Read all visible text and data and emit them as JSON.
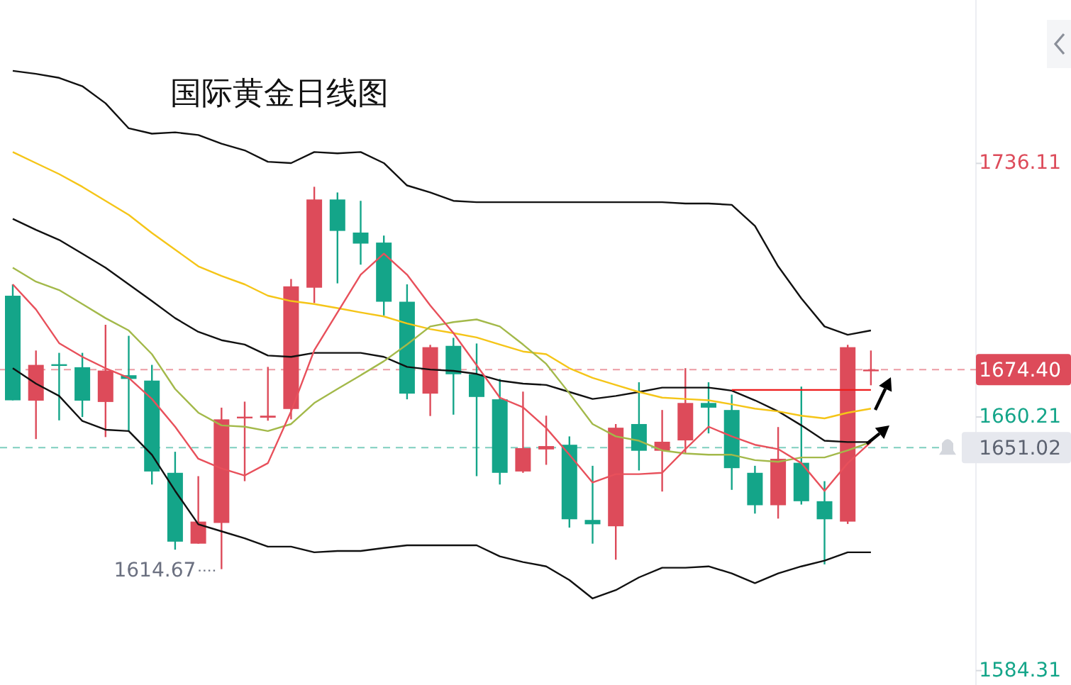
{
  "chart_data": {
    "type": "candlestick",
    "title": "国际黄金日线图",
    "categories": [
      null,
      null,
      null,
      null,
      null,
      null,
      null,
      null,
      null,
      null,
      null,
      null,
      null,
      null,
      null,
      null,
      null,
      null,
      null,
      null,
      null,
      null,
      null,
      null,
      null,
      null,
      null,
      null,
      null,
      null,
      null,
      null,
      null,
      null,
      null,
      null,
      null,
      null
    ],
    "ohlc": [
      [
        1696.5,
        1699.9,
        1665.2,
        1665.2
      ],
      [
        1665.1,
        1680.1,
        1653.6,
        1675.8
      ],
      [
        1676.0,
        1679.4,
        1659.2,
        1675.6
      ],
      [
        1675.1,
        1679.4,
        1660.2,
        1665.1
      ],
      [
        1664.7,
        1687.8,
        1654.2,
        1674.1
      ],
      [
        1672.7,
        1684.5,
        1656.0,
        1671.6
      ],
      [
        1671.1,
        1675.8,
        1640.0,
        1643.9
      ],
      [
        1643.5,
        1649.8,
        1620.5,
        1622.9
      ],
      [
        1622.3,
        1642.5,
        1622.3,
        1628.9
      ],
      [
        1628.5,
        1663.0,
        1614.67,
        1659.5
      ],
      [
        1660.0,
        1664.8,
        1641.0,
        1660.3
      ],
      [
        1660.0,
        1675.2,
        1659.1,
        1660.6
      ],
      [
        1662.6,
        1701.5,
        1659.5,
        1699.3
      ],
      [
        1698.9,
        1729.1,
        1694.3,
        1725.3
      ],
      [
        1725.3,
        1727.4,
        1700.2,
        1715.9
      ],
      [
        1715.4,
        1724.9,
        1705.8,
        1712.1
      ],
      [
        1712.4,
        1714.5,
        1690.6,
        1694.7
      ],
      [
        1694.7,
        1699.9,
        1665.5,
        1667.2
      ],
      [
        1667.2,
        1681.8,
        1660.5,
        1681.1
      ],
      [
        1681.5,
        1683.9,
        1660.9,
        1673.0
      ],
      [
        1673.0,
        1682.2,
        1642.5,
        1666.2
      ],
      [
        1665.5,
        1671.6,
        1640.0,
        1643.5
      ],
      [
        1643.9,
        1667.8,
        1643.5,
        1650.9
      ],
      [
        1650.5,
        1660.6,
        1645.9,
        1651.5
      ],
      [
        1651.9,
        1654.4,
        1627.1,
        1629.6
      ],
      [
        1629.4,
        1645.6,
        1622.3,
        1628.1
      ],
      [
        1627.5,
        1658.1,
        1617.5,
        1657.0
      ],
      [
        1658.1,
        1670.6,
        1644.2,
        1650.1
      ],
      [
        1650.1,
        1662.3,
        1637.9,
        1652.8
      ],
      [
        1653.2,
        1674.8,
        1649.3,
        1664.4
      ],
      [
        1664.4,
        1670.6,
        1655.3,
        1663.0
      ],
      [
        1662.3,
        1666.9,
        1638.4,
        1644.9
      ],
      [
        1643.5,
        1645.6,
        1631.3,
        1633.8
      ],
      [
        1633.8,
        1657.2,
        1629.8,
        1647.7
      ],
      [
        1646.5,
        1669.3,
        1634.0,
        1635.0
      ],
      [
        1635.0,
        1641.0,
        1616.1,
        1629.6
      ],
      [
        1628.9,
        1681.8,
        1628.2,
        1681.1
      ],
      [
        1674.1,
        1680.1,
        1669.7,
        1674.4
      ]
    ],
    "colors": [
      "#14a589",
      "#dd4b5a",
      "#14a589",
      "#14a589",
      "#dd4b5a",
      "#14a589",
      "#14a589",
      "#14a589",
      "#dd4b5a",
      "#dd4b5a",
      "#dd4b5a",
      "#dd4b5a",
      "#dd4b5a",
      "#dd4b5a",
      "#14a589",
      "#14a589",
      "#14a589",
      "#14a589",
      "#dd4b5a",
      "#14a589",
      "#14a589",
      "#14a589",
      "#dd4b5a",
      "#dd4b5a",
      "#14a589",
      "#14a589",
      "#dd4b5a",
      "#14a589",
      "#dd4b5a",
      "#dd4b5a",
      "#14a589",
      "#14a589",
      "#14a589",
      "#dd4b5a",
      "#14a589",
      "#14a589",
      "#dd4b5a",
      "#dd4b5a"
    ],
    "series": [
      {
        "type": "line",
        "color": "#111111",
        "values": [
          1763.8,
          1762.9,
          1761.7,
          1759.2,
          1754.1,
          1746.6,
          1745.0,
          1745.4,
          1744.6,
          1742.0,
          1740.0,
          1736.6,
          1736.2,
          1739.5,
          1739.1,
          1739.5,
          1736.2,
          1729.5,
          1727.4,
          1724.9,
          1724.5,
          1724.5,
          1724.5,
          1724.5,
          1724.5,
          1724.5,
          1724.5,
          1724.5,
          1724.5,
          1724.1,
          1724.1,
          1723.7,
          1717.4,
          1705.3,
          1695.7,
          1687.3,
          1684.8,
          1686.1
        ]
      },
      {
        "type": "line",
        "color": "#111111",
        "values": [
          1719.5,
          1716.2,
          1713.2,
          1709.1,
          1704.9,
          1699.9,
          1694.9,
          1689.8,
          1685.7,
          1683.2,
          1681.9,
          1678.6,
          1678.2,
          1679.4,
          1679.4,
          1679.4,
          1678.2,
          1675.2,
          1674.4,
          1674.0,
          1673.1,
          1671.1,
          1670.2,
          1669.8,
          1667.7,
          1665.6,
          1666.5,
          1667.7,
          1669.0,
          1669.0,
          1669.0,
          1668.1,
          1665.2,
          1661.9,
          1657.7,
          1653.1,
          1652.7,
          1652.7
        ]
      },
      {
        "type": "line",
        "color": "#111111",
        "values": [
          1674.8,
          1670.2,
          1666.5,
          1659.0,
          1656.4,
          1656.0,
          1648.9,
          1638.1,
          1628.1,
          1626.0,
          1623.9,
          1621.4,
          1621.4,
          1619.7,
          1620.1,
          1620.1,
          1621.0,
          1621.8,
          1621.8,
          1621.8,
          1621.8,
          1618.5,
          1616.8,
          1615.5,
          1611.4,
          1605.9,
          1608.4,
          1612.2,
          1615.1,
          1615.1,
          1615.5,
          1613.4,
          1610.5,
          1613.4,
          1615.5,
          1617.2,
          1619.7,
          1619.7
        ]
      },
      {
        "type": "line",
        "color": "#f5c518",
        "values": [
          1739.5,
          1736.2,
          1732.9,
          1729.1,
          1724.9,
          1720.7,
          1715.3,
          1710.3,
          1705.3,
          1702.4,
          1699.9,
          1696.5,
          1694.9,
          1694.0,
          1692.8,
          1691.5,
          1690.3,
          1688.2,
          1686.5,
          1685.3,
          1684.0,
          1681.9,
          1679.8,
          1679.0,
          1674.8,
          1671.9,
          1669.8,
          1667.7,
          1666.0,
          1665.6,
          1665.2,
          1664.0,
          1662.7,
          1661.9,
          1660.6,
          1659.8,
          1661.5,
          1662.7
        ]
      },
      {
        "type": "line",
        "color": "#a3b94a",
        "values": [
          1704.9,
          1700.7,
          1698.2,
          1694.0,
          1689.8,
          1686.1,
          1679.0,
          1668.6,
          1661.5,
          1657.7,
          1657.3,
          1656.0,
          1658.1,
          1664.4,
          1668.6,
          1672.7,
          1676.9,
          1681.9,
          1687.3,
          1688.6,
          1689.4,
          1687.3,
          1681.9,
          1676.1,
          1667.3,
          1658.1,
          1654.4,
          1653.1,
          1650.2,
          1649.3,
          1648.9,
          1648.9,
          1647.3,
          1646.8,
          1648.1,
          1648.1,
          1650.2,
          1652.7
        ]
      },
      {
        "type": "line",
        "color": "#e8505b",
        "values": [
          1699.9,
          1692.4,
          1682.3,
          1678.2,
          1674.8,
          1671.9,
          1665.6,
          1657.3,
          1647.7,
          1644.8,
          1642.7,
          1646.4,
          1661.9,
          1680.2,
          1691.5,
          1702.8,
          1709.1,
          1702.8,
          1693.6,
          1685.3,
          1675.7,
          1666.0,
          1663.1,
          1656.9,
          1648.9,
          1640.6,
          1643.1,
          1643.1,
          1643.5,
          1650.6,
          1657.3,
          1654.4,
          1651.9,
          1650.6,
          1646.4,
          1638.1,
          1646.4,
          1652.7
        ]
      },
      {
        "type": "line",
        "color": "#ee1c1c",
        "values": [
          null,
          null,
          null,
          null,
          null,
          null,
          null,
          null,
          null,
          null,
          null,
          null,
          null,
          null,
          null,
          null,
          null,
          null,
          null,
          null,
          null,
          null,
          null,
          null,
          null,
          null,
          null,
          null,
          null,
          null,
          null,
          1668.3,
          1668.3,
          1668.3,
          1668.3,
          1668.3,
          1668.3,
          1668.3
        ]
      }
    ],
    "ylim": [
      1580,
      1785
    ],
    "yticks": [
      1736.11,
      1660.21,
      1584.31
    ],
    "tick_labels": "y",
    "grid": false,
    "ref_lines": [
      {
        "axis": "y",
        "value": 1674.4,
        "label": "1674.40",
        "color": "#dd4b5a",
        "line_style": "dashed"
      },
      {
        "axis": "y",
        "value": 1651.02,
        "label": "1651.02",
        "color": "#14a589",
        "line_style": "dashed"
      }
    ],
    "annotations": [
      "1614.67"
    ]
  }
}
